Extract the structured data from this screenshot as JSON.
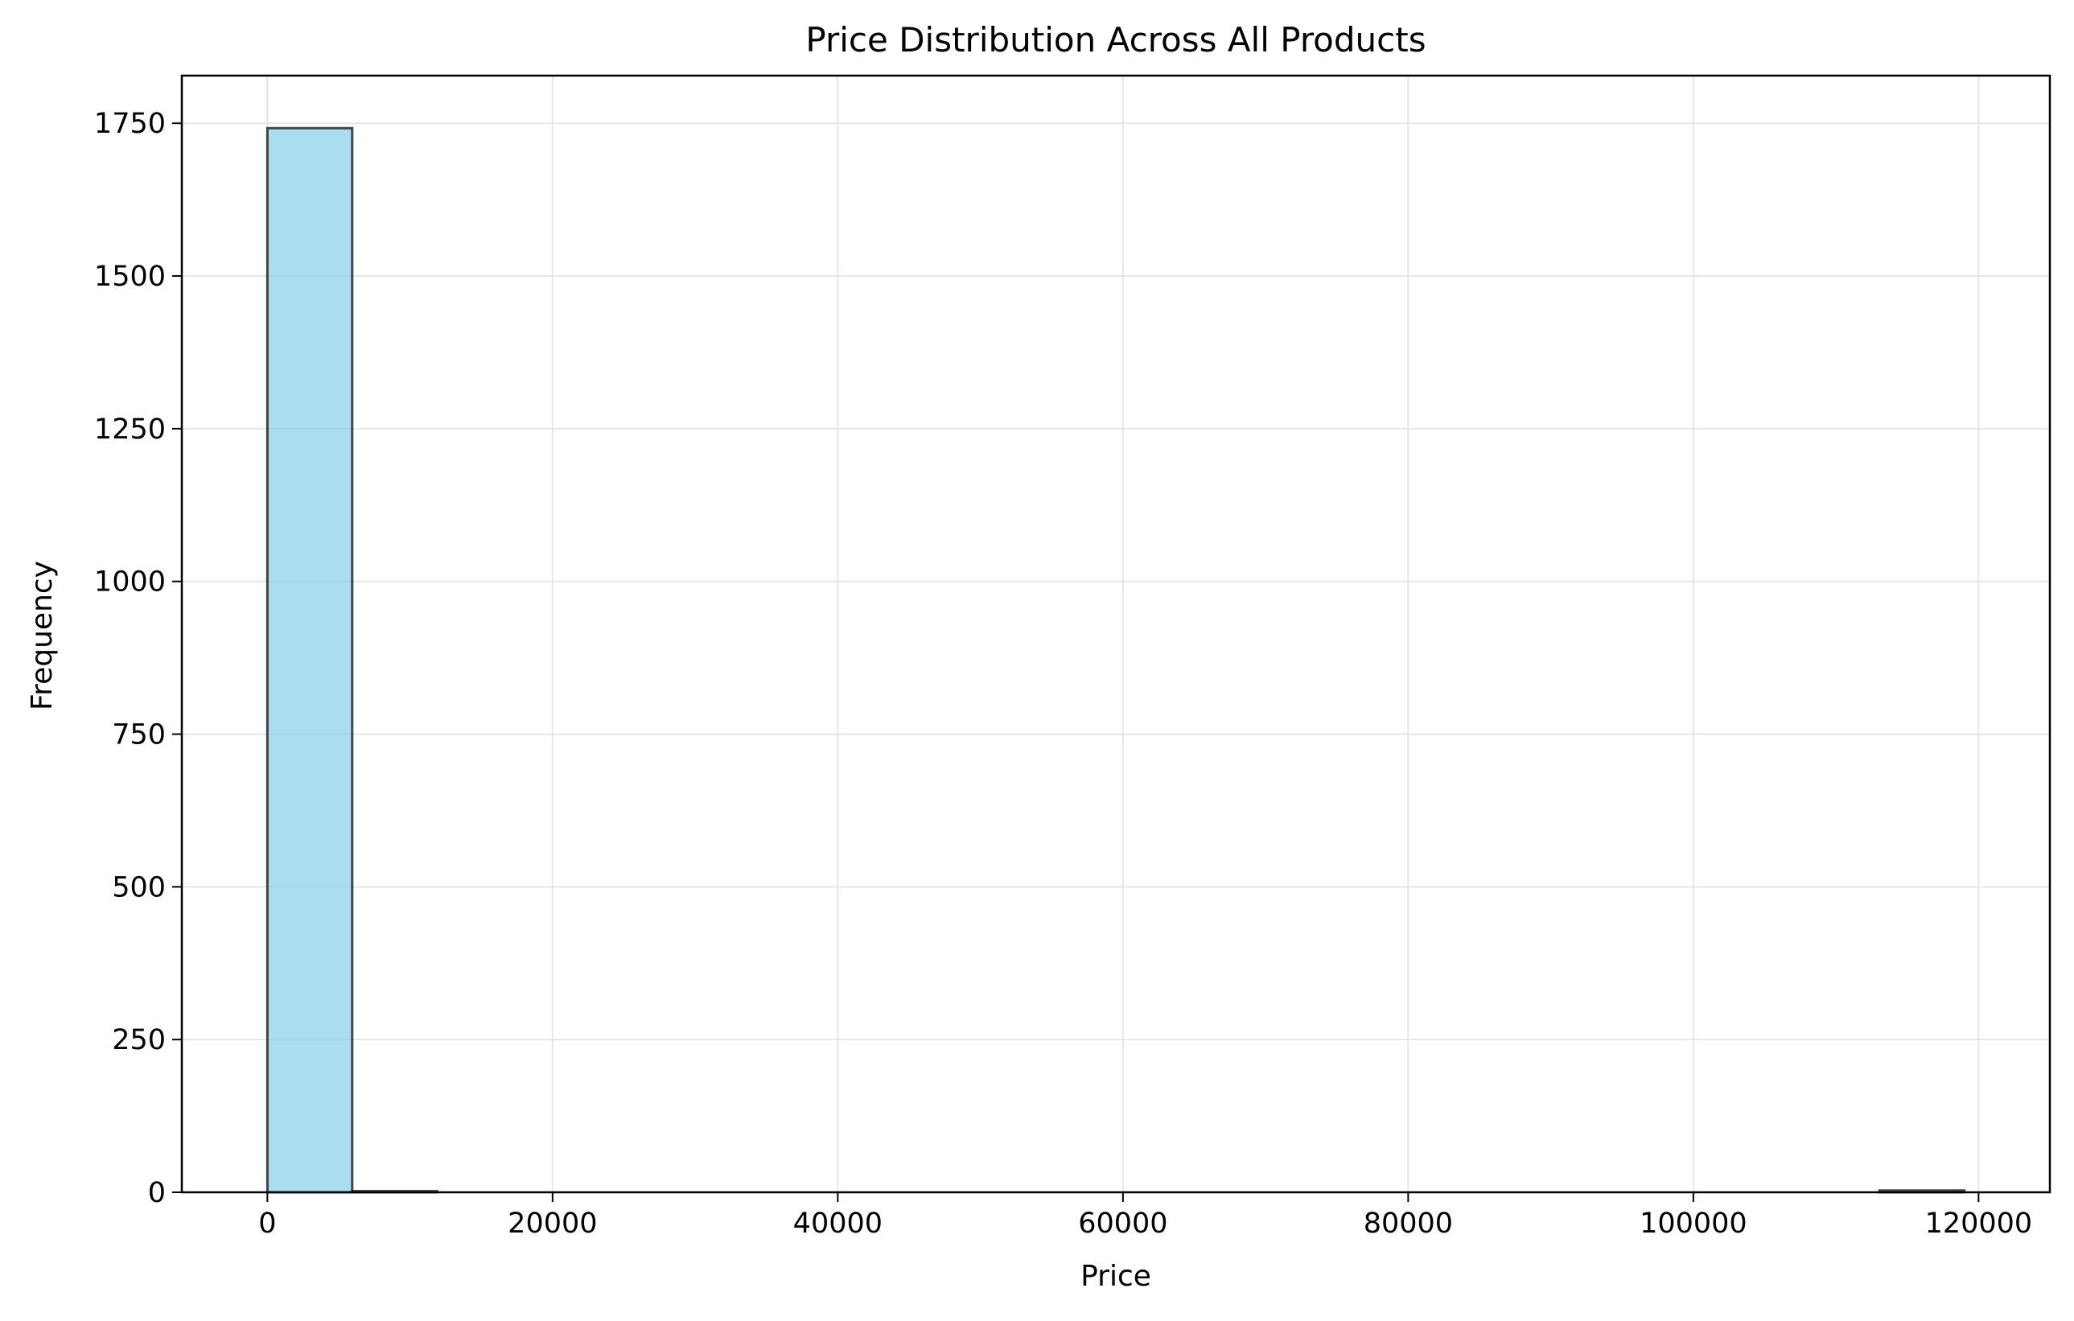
{
  "chart_data": {
    "type": "bar",
    "title": "Price Distribution Across All Products",
    "xlabel": "Price",
    "ylabel": "Frequency",
    "xlim": [
      -6000,
      125000
    ],
    "ylim": [
      0,
      1828
    ],
    "grid": true,
    "legend": "none",
    "xticks": [
      {
        "value": 0,
        "label": "0"
      },
      {
        "value": 20000,
        "label": "20000"
      },
      {
        "value": 40000,
        "label": "40000"
      },
      {
        "value": 60000,
        "label": "60000"
      },
      {
        "value": 80000,
        "label": "80000"
      },
      {
        "value": 100000,
        "label": "100000"
      },
      {
        "value": 120000,
        "label": "120000"
      }
    ],
    "yticks": [
      {
        "value": 0,
        "label": "0"
      },
      {
        "value": 250,
        "label": "250"
      },
      {
        "value": 500,
        "label": "500"
      },
      {
        "value": 750,
        "label": "750"
      },
      {
        "value": 1000,
        "label": "1000"
      },
      {
        "value": 1250,
        "label": "1250"
      },
      {
        "value": 1500,
        "label": "1500"
      },
      {
        "value": 1750,
        "label": "1750"
      }
    ],
    "bins": [
      {
        "x0": 0,
        "x1": 5950,
        "count": 1742
      },
      {
        "x0": 5950,
        "x1": 11900,
        "count": 2
      },
      {
        "x0": 11900,
        "x1": 17850,
        "count": 0
      },
      {
        "x0": 17850,
        "x1": 23800,
        "count": 0
      },
      {
        "x0": 23800,
        "x1": 29750,
        "count": 0
      },
      {
        "x0": 29750,
        "x1": 35700,
        "count": 0
      },
      {
        "x0": 35700,
        "x1": 41650,
        "count": 0
      },
      {
        "x0": 41650,
        "x1": 47600,
        "count": 0
      },
      {
        "x0": 47600,
        "x1": 53550,
        "count": 0
      },
      {
        "x0": 53550,
        "x1": 59500,
        "count": 0
      },
      {
        "x0": 59500,
        "x1": 65450,
        "count": 0
      },
      {
        "x0": 65450,
        "x1": 71400,
        "count": 0
      },
      {
        "x0": 71400,
        "x1": 77350,
        "count": 0
      },
      {
        "x0": 77350,
        "x1": 83300,
        "count": 0
      },
      {
        "x0": 83300,
        "x1": 89250,
        "count": 0
      },
      {
        "x0": 89250,
        "x1": 95200,
        "count": 0
      },
      {
        "x0": 95200,
        "x1": 101150,
        "count": 0
      },
      {
        "x0": 101150,
        "x1": 107100,
        "count": 0
      },
      {
        "x0": 107100,
        "x1": 113050,
        "count": 0
      },
      {
        "x0": 113050,
        "x1": 119000,
        "count": 3
      }
    ],
    "colors": {
      "bar_fill": "#87CEEB",
      "bar_fill_opacity": 0.7,
      "bar_edge": "#000000",
      "grid": "#e6e6e6",
      "axes": "#000000"
    }
  }
}
